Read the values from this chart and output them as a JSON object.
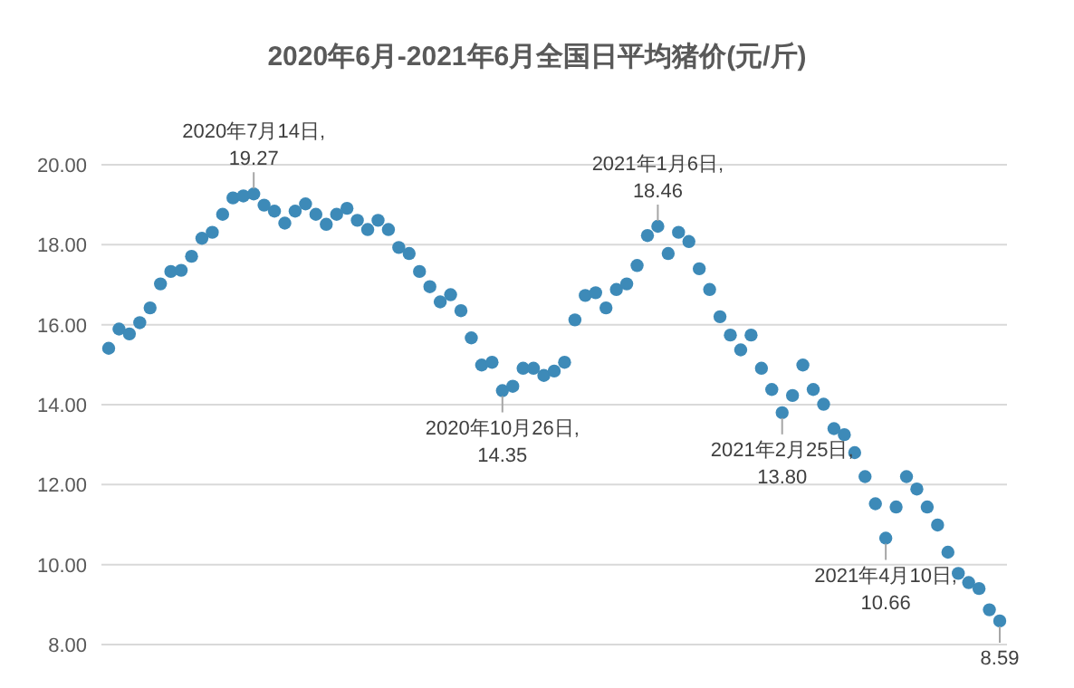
{
  "chart_data": {
    "type": "scatter",
    "title": "2020年6月-2021年6月全国日平均猪价(元/斤)",
    "categories": [
      null,
      null,
      null,
      null,
      null,
      null,
      null,
      null,
      null,
      null,
      null,
      null,
      null,
      null,
      null,
      null,
      null,
      null,
      null,
      null,
      null,
      null,
      null,
      null,
      null,
      null,
      null,
      null,
      null,
      null,
      null,
      null,
      null,
      null,
      null,
      null,
      null,
      null,
      null,
      null,
      null,
      null,
      null,
      null,
      null,
      null,
      null,
      null,
      null,
      null,
      null,
      null,
      null,
      null,
      null,
      null,
      null,
      null,
      null,
      null,
      null,
      null,
      null,
      null,
      null,
      null,
      null,
      null,
      null,
      null,
      null,
      null,
      null,
      null,
      null,
      null,
      null,
      null,
      null,
      null,
      null,
      null,
      null,
      null,
      null,
      null,
      null
    ],
    "series": [
      {
        "color": "#3d8ab8",
        "values": [
          15.41,
          15.89,
          15.77,
          16.05,
          16.42,
          17.02,
          17.33,
          17.36,
          17.71,
          18.16,
          18.31,
          18.76,
          19.17,
          19.22,
          19.27,
          18.99,
          18.84,
          18.54,
          18.84,
          19.02,
          18.76,
          18.51,
          18.76,
          18.91,
          18.61,
          18.38,
          18.61,
          18.38,
          17.93,
          17.78,
          17.33,
          16.95,
          16.57,
          16.75,
          16.35,
          15.67,
          14.99,
          15.06,
          14.35,
          14.46,
          14.91,
          14.91,
          14.73,
          14.84,
          15.06,
          16.12,
          16.73,
          16.8,
          16.42,
          16.88,
          17.02,
          17.48,
          18.23,
          18.46,
          17.78,
          18.31,
          18.08,
          17.4,
          16.88,
          16.2,
          15.74,
          15.37,
          15.74,
          14.91,
          14.38,
          13.8,
          14.23,
          14.99,
          14.38,
          14.01,
          13.4,
          13.25,
          12.8,
          12.2,
          11.52,
          10.66,
          11.44,
          12.2,
          11.89,
          11.44,
          10.99,
          10.31,
          9.78,
          9.55,
          9.4,
          8.87,
          8.59
        ]
      }
    ],
    "ylim": [
      8,
      20
    ],
    "yticks": [
      {
        "value": 8,
        "label": "8.00"
      },
      {
        "value": 10,
        "label": "10.00"
      },
      {
        "value": 12,
        "label": "12.00"
      },
      {
        "value": 14,
        "label": "14.00"
      },
      {
        "value": 16,
        "label": "16.00"
      },
      {
        "value": 18,
        "label": "18.00"
      },
      {
        "value": 20,
        "label": "20.00"
      }
    ],
    "tick_labels": "y",
    "grid": "y",
    "marker": "circle",
    "annotations": [
      {
        "text": "2020年7月14日,\n19.27",
        "y": 19.27
      },
      {
        "text": "2020年10月26日,\n14.35",
        "y": 14.35
      },
      {
        "text": "2021年1月6日,\n18.46",
        "y": 18.46
      },
      {
        "text": "2021年2月25日,\n13.80",
        "y": 13.8
      },
      {
        "text": "2021年4月10日,\n10.66",
        "y": 10.66
      },
      {
        "text": "8.59",
        "y": 8.59
      }
    ]
  }
}
